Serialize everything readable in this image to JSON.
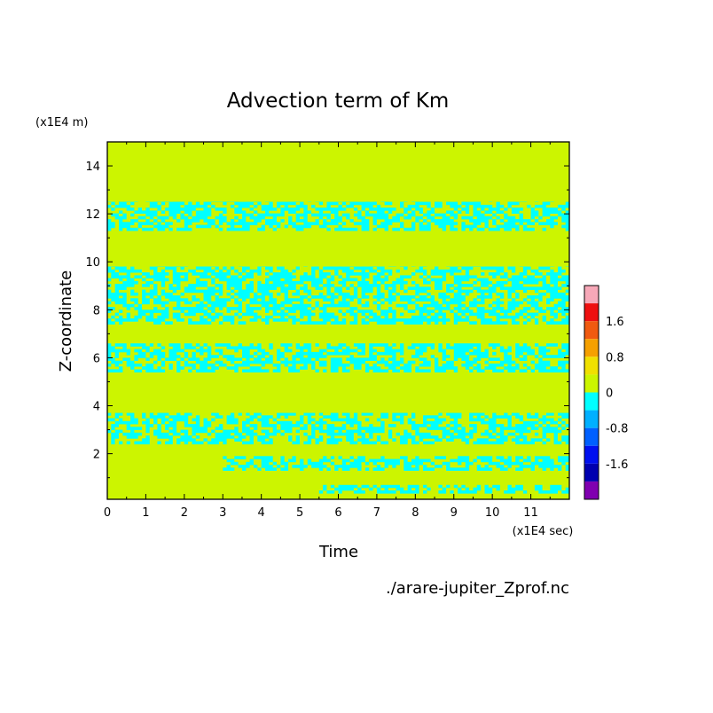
{
  "chart_data": {
    "type": "heatmap",
    "title": "Advection term of Km",
    "xlabel": "Time",
    "ylabel": "Z-coordinate",
    "x_unit": "(x1E4 sec)",
    "y_unit": "(x1E4 m)",
    "source_file": "./arare-jupiter_Zprof.nc",
    "xlim": [
      0,
      12
    ],
    "ylim": [
      0.1,
      15
    ],
    "x_ticks": [
      "0",
      "1",
      "2",
      "3",
      "4",
      "5",
      "6",
      "7",
      "8",
      "9",
      "10",
      "11"
    ],
    "y_ticks": [
      "2",
      "4",
      "6",
      "8",
      "10",
      "12",
      "14"
    ],
    "colorbar": {
      "tick_labels": [
        "1.6",
        "0.8",
        "0",
        "-0.8",
        "-1.6"
      ],
      "levels": [
        {
          "from": 2.0,
          "to": 2.4,
          "color": "#f7a8b8"
        },
        {
          "from": 1.6,
          "to": 2.0,
          "color": "#ee1010"
        },
        {
          "from": 1.2,
          "to": 1.6,
          "color": "#f05a10"
        },
        {
          "from": 0.8,
          "to": 1.2,
          "color": "#f5a000"
        },
        {
          "from": 0.4,
          "to": 0.8,
          "color": "#f0e000"
        },
        {
          "from": 0.0,
          "to": 0.4,
          "color": "#ccf500"
        },
        {
          "from": -0.4,
          "to": 0.0,
          "color": "#00ffff"
        },
        {
          "from": -0.8,
          "to": -0.4,
          "color": "#00b0ff"
        },
        {
          "from": -1.2,
          "to": -0.8,
          "color": "#0060ff"
        },
        {
          "from": -1.6,
          "to": -1.2,
          "color": "#0010f0"
        },
        {
          "from": -2.0,
          "to": -1.6,
          "color": "#0000b0"
        },
        {
          "from": -2.4,
          "to": -2.0,
          "color": "#8000b0"
        }
      ]
    },
    "background_color": "#ccf500",
    "negative_color": "#00ffff",
    "negative_regions": [
      {
        "z_from": 11.3,
        "z_to": 12.5,
        "t_from": 0.0,
        "t_to": 12.0
      },
      {
        "z_from": 7.4,
        "z_to": 9.8,
        "t_from": 0.0,
        "t_to": 12.0
      },
      {
        "z_from": 5.4,
        "z_to": 6.6,
        "t_from": 0.0,
        "t_to": 12.0
      },
      {
        "z_from": 2.4,
        "z_to": 3.7,
        "t_from": 0.0,
        "t_to": 12.0
      },
      {
        "z_from": 1.3,
        "z_to": 1.9,
        "t_from": 3.0,
        "t_to": 12.0
      },
      {
        "z_from": 0.35,
        "z_to": 0.7,
        "t_from": 5.5,
        "t_to": 12.0
      }
    ]
  }
}
